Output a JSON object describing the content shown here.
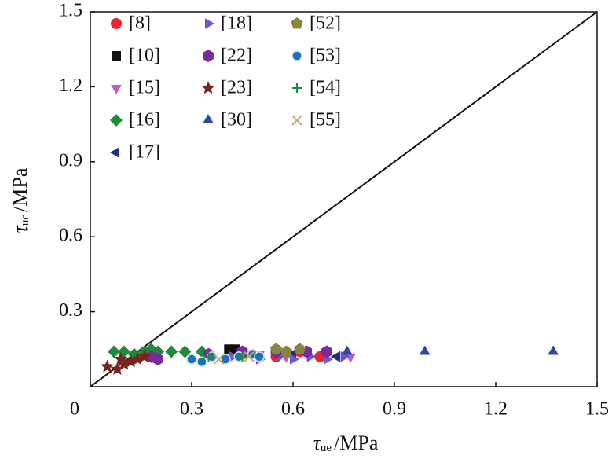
{
  "chart_data": {
    "type": "scatter",
    "x_label": {
      "symbol": "τ",
      "subscript": "ue",
      "unit": "/MPa"
    },
    "y_label": {
      "symbol": "τ",
      "subscript": "uc",
      "unit": "/MPa"
    },
    "xlim": [
      0,
      1.5
    ],
    "ylim": [
      0,
      1.5
    ],
    "xticks": [
      0,
      0.3,
      0.6,
      0.9,
      1.2,
      1.5
    ],
    "yticks": [
      0.3,
      0.6,
      0.9,
      1.2,
      1.5
    ],
    "series": [
      {
        "name": "[8]",
        "marker": "circle",
        "color": "#e8262b",
        "x": [
          0.45,
          0.55,
          0.62,
          0.68
        ],
        "values": [
          0.13,
          0.12,
          0.14,
          0.12
        ]
      },
      {
        "name": "[10]",
        "marker": "square",
        "color": "#111111",
        "x": [
          0.41,
          0.43
        ],
        "values": [
          0.15,
          0.15
        ]
      },
      {
        "name": "[15]",
        "marker": "tri-down",
        "color": "#c45bc4",
        "x": [
          0.5,
          0.58,
          0.77
        ],
        "values": [
          0.13,
          0.12,
          0.12
        ]
      },
      {
        "name": "[16]",
        "marker": "diamond",
        "color": "#1f8a3c",
        "x": [
          0.07,
          0.1,
          0.13,
          0.16,
          0.18,
          0.2,
          0.24,
          0.28,
          0.33
        ],
        "values": [
          0.14,
          0.14,
          0.13,
          0.14,
          0.15,
          0.14,
          0.14,
          0.14,
          0.14
        ]
      },
      {
        "name": "[17]",
        "marker": "tri-left",
        "color": "#1e2a8c",
        "x": [
          0.6,
          0.73
        ],
        "values": [
          0.13,
          0.12
        ]
      },
      {
        "name": "[18]",
        "marker": "tri-right",
        "color": "#6a5acd",
        "x": [
          0.42,
          0.5,
          0.56,
          0.6,
          0.65,
          0.7,
          0.75
        ],
        "values": [
          0.12,
          0.11,
          0.12,
          0.11,
          0.12,
          0.11,
          0.12
        ]
      },
      {
        "name": "[22]",
        "marker": "hexagon",
        "color": "#7b2a96",
        "x": [
          0.18,
          0.2,
          0.35,
          0.45,
          0.55,
          0.64,
          0.7
        ],
        "values": [
          0.12,
          0.11,
          0.13,
          0.14,
          0.14,
          0.14,
          0.14
        ]
      },
      {
        "name": "[23]",
        "marker": "star",
        "color": "#7a2222",
        "x": [
          0.05,
          0.08,
          0.1,
          0.12,
          0.14,
          0.16,
          0.09
        ],
        "values": [
          0.08,
          0.07,
          0.09,
          0.1,
          0.11,
          0.12,
          0.11
        ]
      },
      {
        "name": "[30]",
        "marker": "tri-up",
        "color": "#2d4a9e",
        "x": [
          0.76,
          0.99,
          1.37
        ],
        "values": [
          0.14,
          0.14,
          0.14
        ]
      },
      {
        "name": "[52]",
        "marker": "pentagon",
        "color": "#8a8440",
        "x": [
          0.55,
          0.58,
          0.62
        ],
        "values": [
          0.15,
          0.14,
          0.15
        ]
      },
      {
        "name": "[53]",
        "marker": "sphere",
        "color": "#1f6fb5",
        "x": [
          0.3,
          0.33,
          0.36,
          0.4,
          0.44,
          0.48,
          0.5
        ],
        "values": [
          0.11,
          0.1,
          0.12,
          0.11,
          0.12,
          0.13,
          0.12
        ]
      },
      {
        "name": "[54]",
        "marker": "plus",
        "color": "#1f8a3c",
        "x": [
          0.35,
          0.45
        ],
        "values": [
          0.12,
          0.12
        ]
      },
      {
        "name": "[55]",
        "marker": "cross",
        "color": "#c8a878",
        "x": [
          0.38,
          0.47
        ],
        "values": [
          0.11,
          0.12
        ]
      }
    ]
  }
}
